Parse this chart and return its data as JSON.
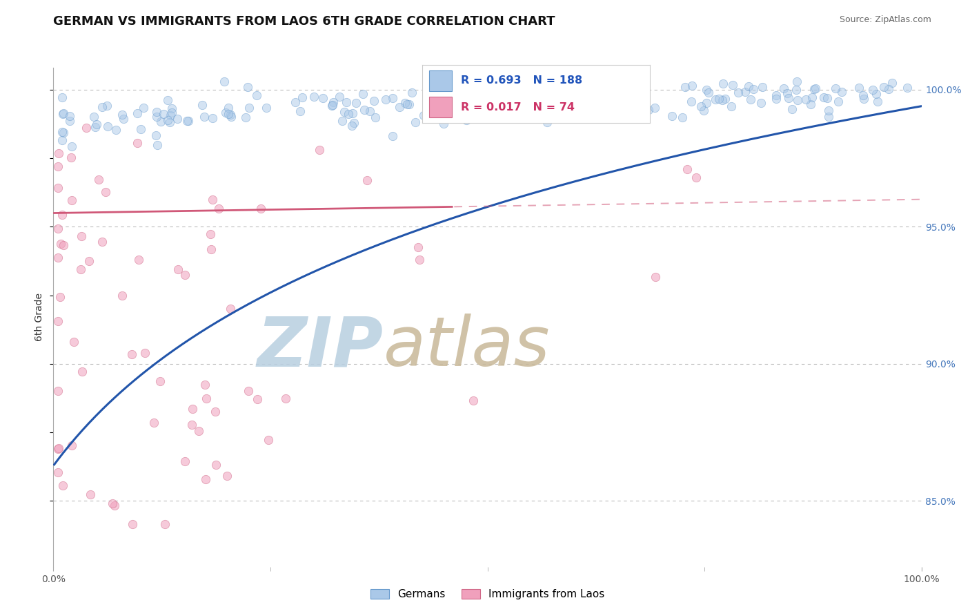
{
  "title": "GERMAN VS IMMIGRANTS FROM LAOS 6TH GRADE CORRELATION CHART",
  "source_text": "Source: ZipAtlas.com",
  "ylabel": "6th Grade",
  "xlim": [
    0.0,
    1.0
  ],
  "ylim": [
    0.826,
    1.008
  ],
  "yticks": [
    0.85,
    0.9,
    0.95,
    1.0
  ],
  "ytick_labels": [
    "85.0%",
    "90.0%",
    "95.0%",
    "100.0%"
  ],
  "xtick_labels": [
    "0.0%",
    "100.0%"
  ],
  "xticks": [
    0.0,
    1.0
  ],
  "legend_r_german": "R = 0.693",
  "legend_n_german": "N = 188",
  "legend_r_laos": "R = 0.017",
  "legend_n_laos": "N = 74",
  "legend_label_german": "Germans",
  "legend_label_laos": "Immigrants from Laos",
  "blue_color": "#aac8e8",
  "blue_edge_color": "#6699cc",
  "blue_line_color": "#2255aa",
  "pink_color": "#f0a0bc",
  "pink_edge_color": "#d06888",
  "pink_line_color": "#d05878",
  "watermark_zip_color": "#b0c8e0",
  "watermark_atlas_color": "#c8b090",
  "background_color": "#ffffff",
  "grid_color": "#bbbbbb",
  "title_fontsize": 13,
  "axis_label_fontsize": 10,
  "tick_fontsize": 10,
  "marker_size": 11,
  "marker_alpha": 0.5
}
